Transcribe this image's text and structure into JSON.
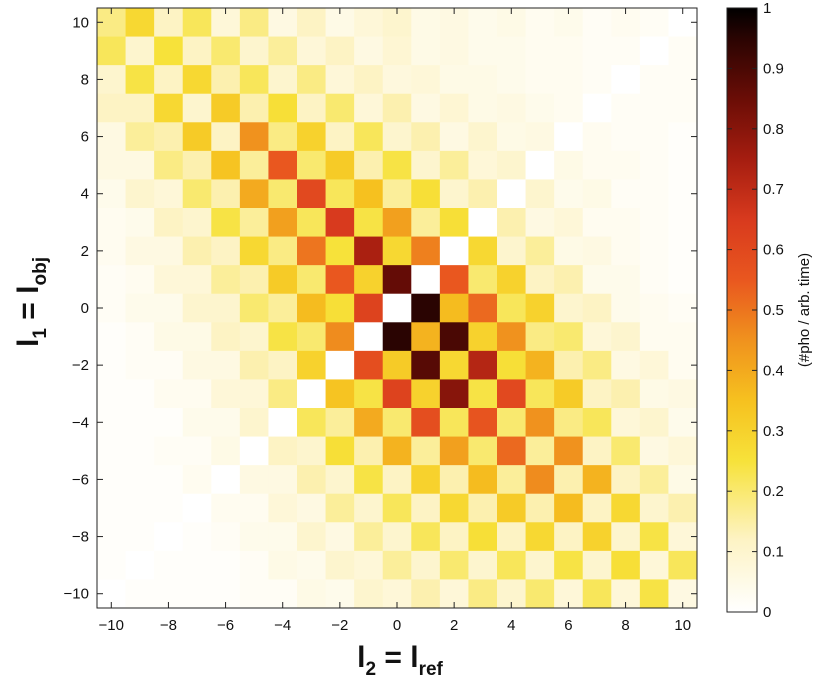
{
  "chart_data": {
    "type": "heatmap",
    "title": "",
    "x_label": {
      "main": "l",
      "sub1": "2",
      "eq": " = ",
      "main2": "l",
      "sub2": "ref"
    },
    "y_label": {
      "main": "l",
      "sub1": "1",
      "eq": " = ",
      "main2": "l",
      "sub2": "obj"
    },
    "x_range": [
      -10.5,
      10.5
    ],
    "y_range": [
      -10.5,
      10.5
    ],
    "x_ticks": [
      -10,
      -8,
      -6,
      -4,
      -2,
      0,
      2,
      4,
      6,
      8,
      10
    ],
    "y_ticks": [
      10,
      8,
      6,
      4,
      2,
      0,
      -2,
      -4,
      -6,
      -8,
      -10
    ],
    "x_cells": [
      -10,
      -9,
      -8,
      -7,
      -6,
      -5,
      -4,
      -3,
      -2,
      -1,
      0,
      1,
      2,
      3,
      4,
      5,
      6,
      7,
      8,
      9,
      10
    ],
    "y_cells": [
      10,
      9,
      8,
      7,
      6,
      5,
      4,
      3,
      2,
      1,
      0,
      -1,
      -2,
      -3,
      -4,
      -5,
      -6,
      -7,
      -8,
      -9,
      -10
    ],
    "description_of_values": "rows ordered y=10 (top) to y=-10 (bottom); columns x=-10 to x=10; diagonal y=-x is masked white",
    "grid": false,
    "colorbar": {
      "label": "(#pho / arb. time)",
      "range": [
        0,
        1
      ],
      "ticks": [
        1,
        0.9,
        0.8,
        0.7,
        0.6,
        0.5,
        0.4,
        0.3,
        0.2,
        0.1,
        0
      ],
      "tick_labels": [
        "1",
        "0.9",
        "0.8",
        "0.7",
        "0.6",
        "0.5",
        "0.4",
        "0.3",
        "0.2",
        "0.1",
        "0"
      ],
      "colormap_stops": [
        {
          "v": 0.0,
          "color": "#ffffff"
        },
        {
          "v": 0.12,
          "color": "#fdf3c4"
        },
        {
          "v": 0.25,
          "color": "#f7e23a"
        },
        {
          "v": 0.35,
          "color": "#f6c11f"
        },
        {
          "v": 0.45,
          "color": "#f0921e"
        },
        {
          "v": 0.55,
          "color": "#e9571f"
        },
        {
          "v": 0.65,
          "color": "#d83a1e"
        },
        {
          "v": 0.75,
          "color": "#a51d10"
        },
        {
          "v": 0.85,
          "color": "#6a0d06"
        },
        {
          "v": 0.95,
          "color": "#2a0402"
        },
        {
          "v": 1.0,
          "color": "#000000"
        }
      ]
    },
    "values": [
      [
        0.18,
        0.28,
        0.12,
        0.22,
        0.08,
        0.18,
        0.06,
        0.12,
        0.05,
        0.08,
        0.1,
        0.05,
        0.06,
        0.04,
        0.05,
        0.03,
        0.04,
        0.02,
        0.03,
        0.02,
        null
      ],
      [
        0.22,
        0.1,
        0.25,
        0.12,
        0.2,
        0.1,
        0.16,
        0.08,
        0.12,
        0.06,
        0.09,
        0.05,
        0.06,
        0.04,
        0.04,
        0.03,
        0.03,
        0.02,
        0.02,
        null,
        0.02
      ],
      [
        0.1,
        0.24,
        0.12,
        0.28,
        0.14,
        0.22,
        0.1,
        0.18,
        0.08,
        0.12,
        0.07,
        0.08,
        0.05,
        0.05,
        0.04,
        0.03,
        0.03,
        0.02,
        null,
        0.02,
        0.02
      ],
      [
        0.12,
        0.12,
        0.28,
        0.1,
        0.32,
        0.14,
        0.26,
        0.12,
        0.2,
        0.08,
        0.14,
        0.06,
        0.09,
        0.05,
        0.06,
        0.04,
        0.03,
        null,
        0.02,
        0.02,
        0.02
      ],
      [
        0.06,
        0.16,
        0.14,
        0.32,
        0.12,
        0.45,
        0.18,
        0.3,
        0.12,
        0.22,
        0.1,
        0.14,
        0.06,
        0.1,
        0.05,
        0.06,
        null,
        0.03,
        0.02,
        0.02,
        0.01
      ],
      [
        0.06,
        0.06,
        0.18,
        0.14,
        0.34,
        0.16,
        0.55,
        0.2,
        0.32,
        0.14,
        0.24,
        0.1,
        0.16,
        0.08,
        0.1,
        null,
        0.05,
        0.03,
        0.03,
        0.02,
        0.01
      ],
      [
        0.04,
        0.1,
        0.08,
        0.2,
        0.14,
        0.4,
        0.2,
        0.6,
        0.22,
        0.35,
        0.16,
        0.26,
        0.1,
        0.14,
        null,
        0.1,
        0.04,
        0.05,
        0.02,
        0.02,
        0.01
      ],
      [
        0.03,
        0.04,
        0.12,
        0.1,
        0.24,
        0.16,
        0.42,
        0.22,
        0.65,
        0.24,
        0.42,
        0.16,
        0.26,
        null,
        0.14,
        0.06,
        0.08,
        0.03,
        0.03,
        0.02,
        0.01
      ],
      [
        0.03,
        0.06,
        0.06,
        0.14,
        0.12,
        0.28,
        0.18,
        0.5,
        0.25,
        0.74,
        0.28,
        0.48,
        null,
        0.28,
        0.1,
        0.16,
        0.05,
        0.06,
        0.03,
        0.02,
        0.01
      ],
      [
        0.02,
        0.03,
        0.08,
        0.08,
        0.16,
        0.14,
        0.32,
        0.2,
        0.55,
        0.3,
        0.86,
        null,
        0.55,
        0.2,
        0.3,
        0.12,
        0.14,
        0.04,
        0.04,
        0.02,
        0.01
      ],
      [
        0.02,
        0.04,
        0.04,
        0.1,
        0.1,
        0.2,
        0.16,
        0.36,
        0.26,
        0.62,
        null,
        0.95,
        0.36,
        0.52,
        0.22,
        0.3,
        0.1,
        0.12,
        0.04,
        0.03,
        0.02
      ],
      [
        0.01,
        0.02,
        0.05,
        0.05,
        0.12,
        0.1,
        0.24,
        0.2,
        0.46,
        null,
        0.95,
        0.38,
        0.9,
        0.3,
        0.45,
        0.18,
        0.2,
        0.08,
        0.1,
        0.03,
        0.03
      ],
      [
        0.01,
        0.02,
        0.02,
        0.06,
        0.06,
        0.14,
        0.12,
        0.3,
        null,
        0.58,
        0.32,
        0.88,
        0.28,
        0.72,
        0.26,
        0.38,
        0.14,
        0.18,
        0.06,
        0.08,
        0.03
      ],
      [
        0.01,
        0.01,
        0.03,
        0.03,
        0.08,
        0.08,
        0.18,
        null,
        0.34,
        0.24,
        0.62,
        0.3,
        0.8,
        0.24,
        0.6,
        0.22,
        0.32,
        0.12,
        0.14,
        0.05,
        0.06
      ],
      [
        0.01,
        0.01,
        0.01,
        0.04,
        0.04,
        0.1,
        null,
        0.22,
        0.16,
        0.4,
        0.2,
        0.58,
        0.22,
        0.56,
        0.2,
        0.45,
        0.18,
        0.22,
        0.08,
        0.1,
        0.04
      ],
      [
        0.01,
        0.01,
        0.02,
        0.02,
        0.05,
        null,
        0.12,
        0.1,
        0.26,
        0.14,
        0.38,
        0.16,
        0.42,
        0.2,
        0.52,
        0.16,
        0.45,
        0.12,
        0.2,
        0.06,
        0.08
      ],
      [
        0.01,
        0.01,
        0.01,
        0.03,
        null,
        0.06,
        0.06,
        0.14,
        0.1,
        0.24,
        0.12,
        0.3,
        0.14,
        0.36,
        0.16,
        0.46,
        0.14,
        0.38,
        0.12,
        0.16,
        0.05
      ],
      [
        0.01,
        0.01,
        0.01,
        null,
        0.03,
        0.03,
        0.08,
        0.06,
        0.16,
        0.1,
        0.22,
        0.12,
        0.28,
        0.14,
        0.32,
        0.14,
        0.36,
        0.12,
        0.28,
        0.1,
        0.14
      ],
      [
        0.01,
        0.01,
        null,
        0.01,
        0.02,
        0.04,
        0.04,
        0.1,
        0.06,
        0.16,
        0.1,
        0.22,
        0.12,
        0.26,
        0.12,
        0.28,
        0.12,
        0.3,
        0.1,
        0.24,
        0.08
      ],
      [
        0.01,
        null,
        0.01,
        0.01,
        0.01,
        0.02,
        0.05,
        0.04,
        0.1,
        0.08,
        0.16,
        0.1,
        0.2,
        0.1,
        0.22,
        0.1,
        0.24,
        0.1,
        0.26,
        0.08,
        0.22
      ],
      [
        null,
        0.01,
        0.01,
        0.01,
        0.01,
        0.02,
        0.02,
        0.05,
        0.04,
        0.1,
        0.08,
        0.14,
        0.08,
        0.18,
        0.1,
        0.2,
        0.08,
        0.22,
        0.08,
        0.24,
        0.06
      ]
    ]
  }
}
